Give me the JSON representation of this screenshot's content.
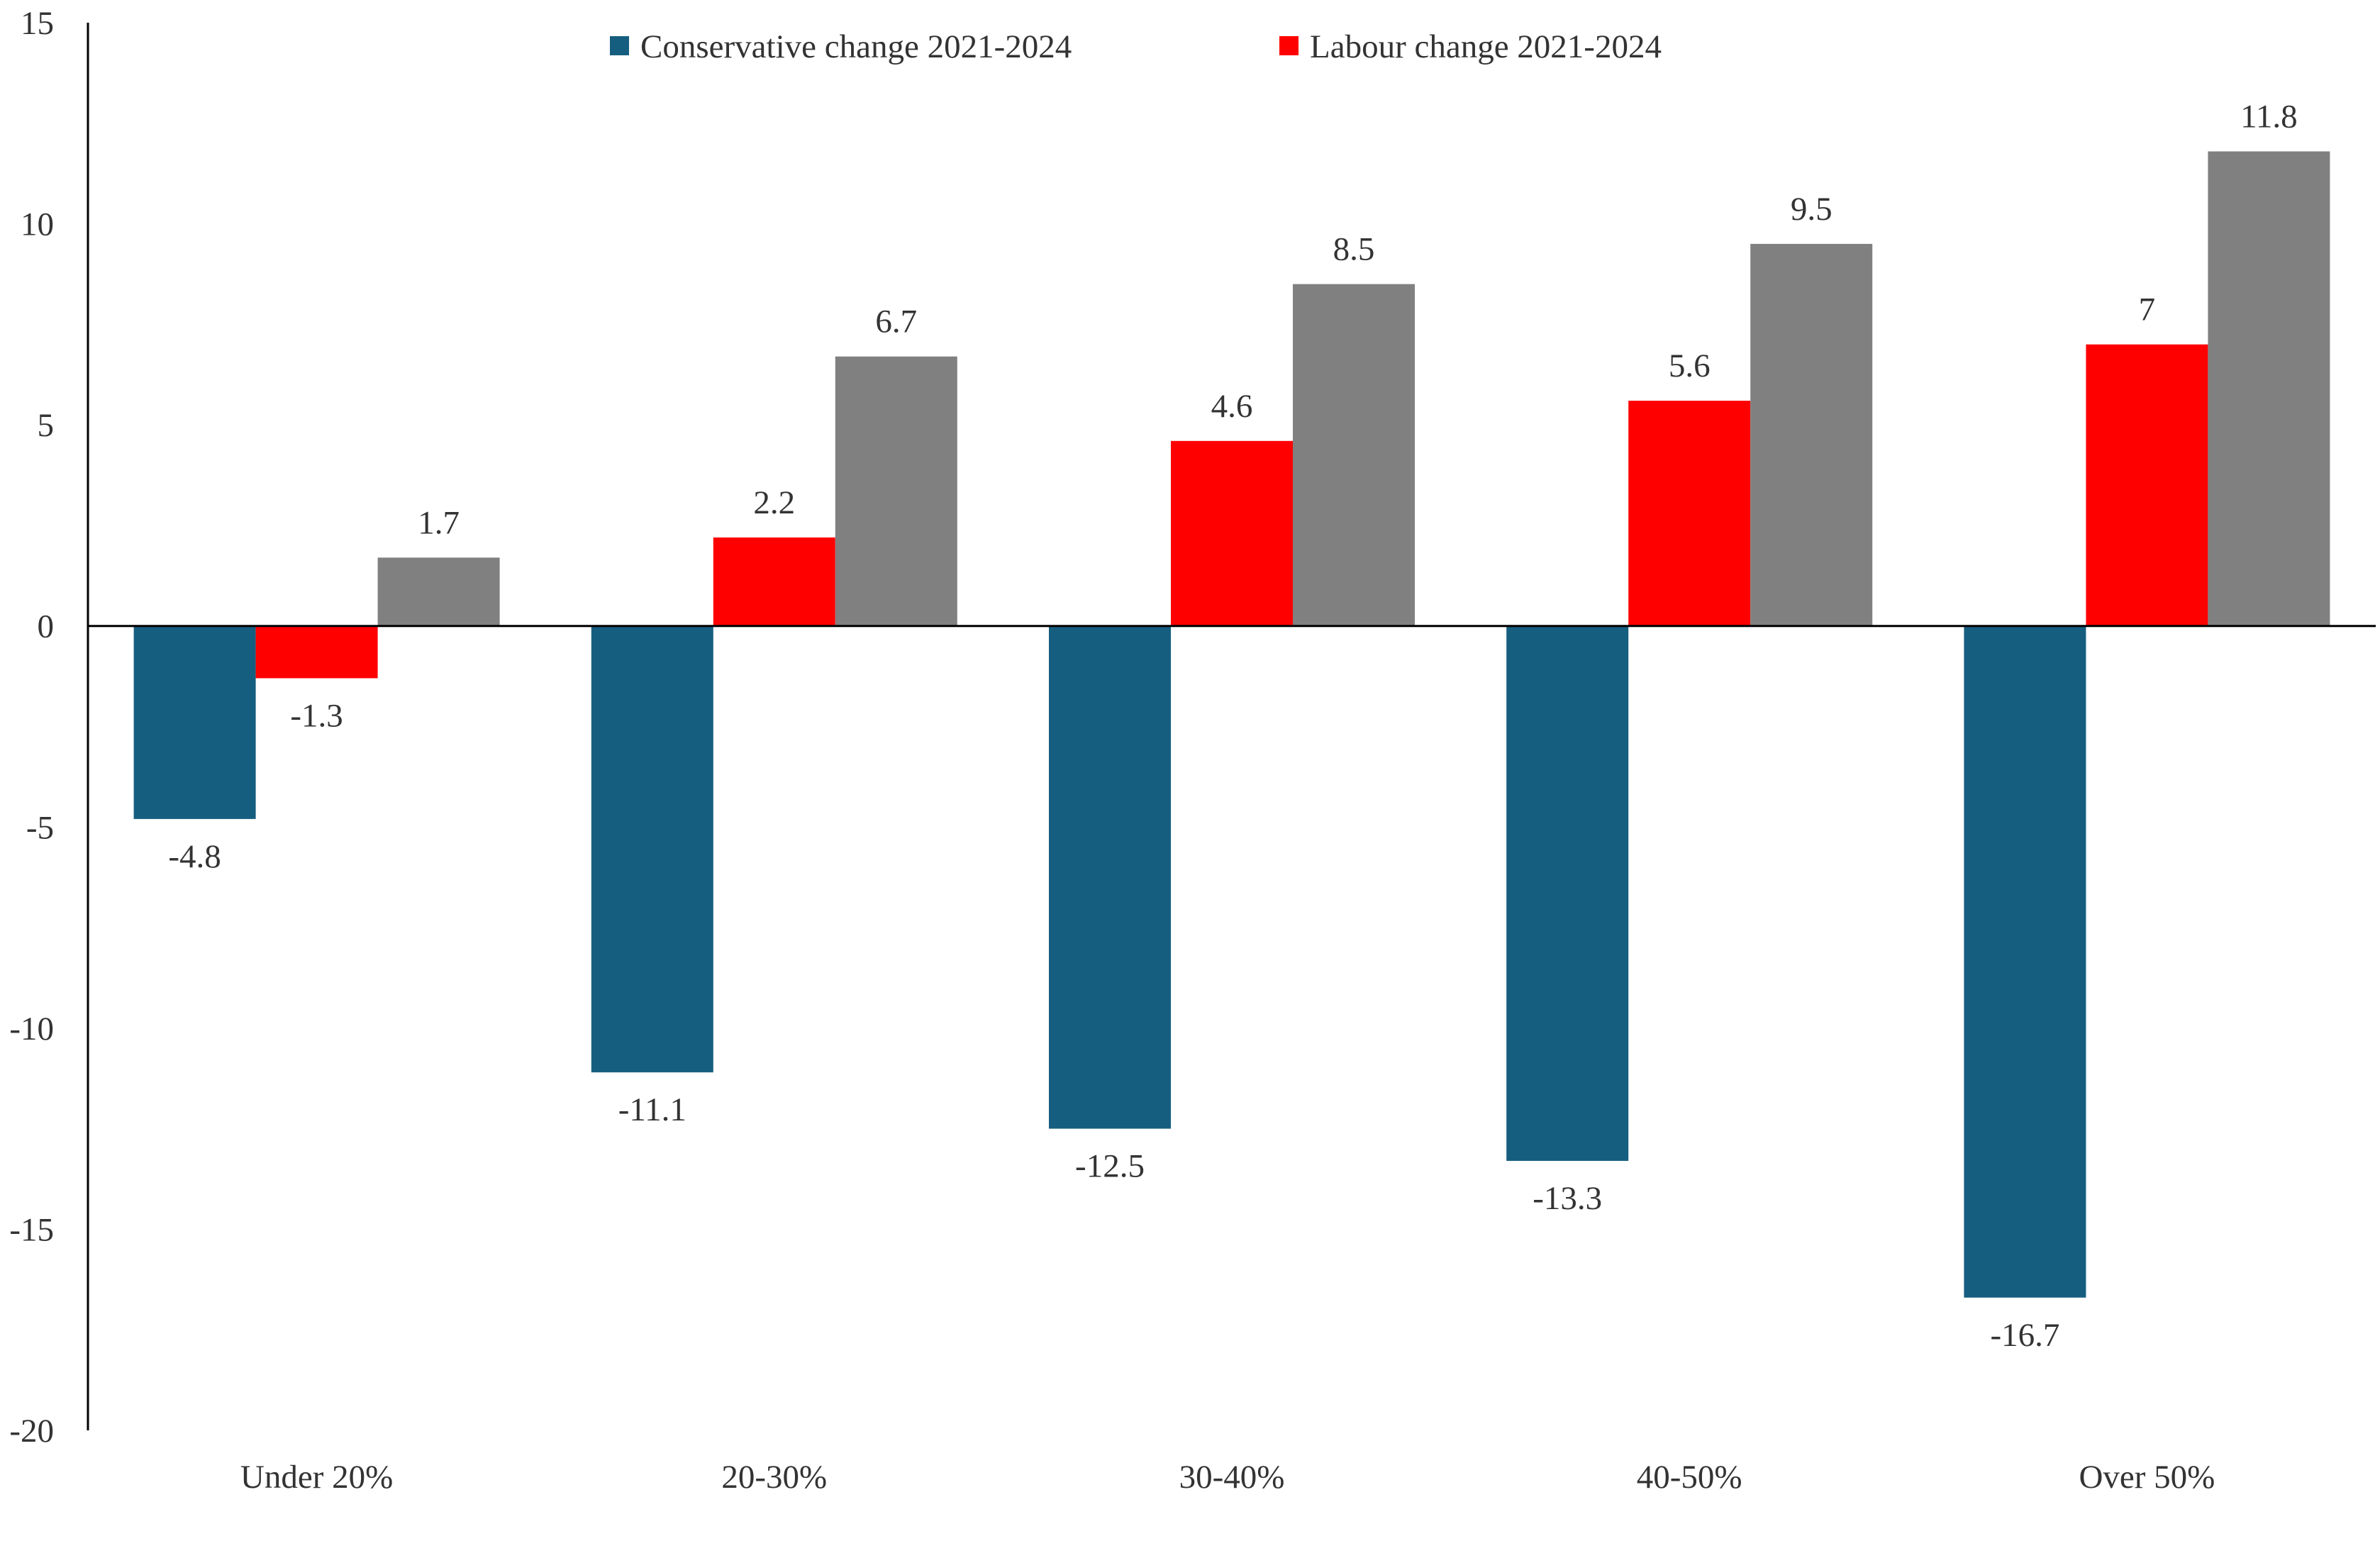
{
  "chart_data": {
    "type": "bar",
    "title": "",
    "xlabel": "",
    "ylabel": "",
    "categories": [
      "Under 20%",
      "20-30%",
      "30-40%",
      "40-50%",
      "Over 50%"
    ],
    "series": [
      {
        "name": "Conservative change 2021-2024",
        "color": "#165e80",
        "values": [
          -4.8,
          -11.1,
          -12.5,
          -13.3,
          -16.7
        ],
        "labels": [
          "-4.8",
          "-11.1",
          "-12.5",
          "-13.3",
          "-16.7"
        ]
      },
      {
        "name": "Labour change 2021-2024",
        "color": "#ff0000",
        "values": [
          -1.3,
          2.2,
          4.6,
          5.6,
          7
        ],
        "labels": [
          "-1.3",
          "2.2",
          "4.6",
          "5.6",
          "7"
        ]
      },
      {
        "color": "#808080",
        "values": [
          1.7,
          6.7,
          8.5,
          9.5,
          11.8
        ],
        "labels": [
          "1.7",
          "6.7",
          "8.5",
          "9.5",
          "11.8"
        ]
      }
    ],
    "ylim": [
      -20,
      15
    ],
    "yticks": [
      15,
      10,
      5,
      0,
      -5,
      -10,
      -15,
      -20
    ],
    "grid": false,
    "legend_position": "top"
  }
}
